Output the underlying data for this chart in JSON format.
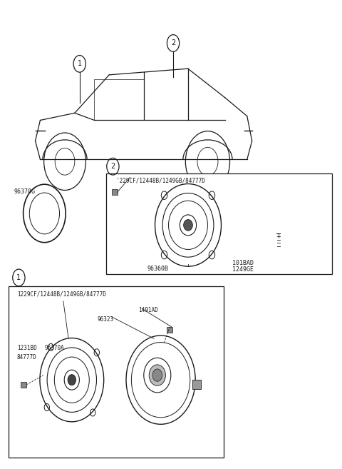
{
  "bg_color": "#ffffff",
  "line_color": "#1a1a1a",
  "text_color": "#1a1a1a",
  "fig_width": 4.8,
  "fig_height": 6.57,
  "dpi": 100,
  "part_number_gasket": "96370G",
  "box2_screw_label": "'229CF/12448B/1249GB/84777D",
  "box2_part1": "96360B",
  "box2_part2": "101BAD",
  "box2_part3": "1249GE",
  "box1_screw_label": "1229CF/12448B/1249GB/84777D",
  "box1_part1": "1231BD",
  "box1_part2": "84777D",
  "box1_part3": "96370A",
  "box1_part4": "96323",
  "box1_part5": "1491AD"
}
